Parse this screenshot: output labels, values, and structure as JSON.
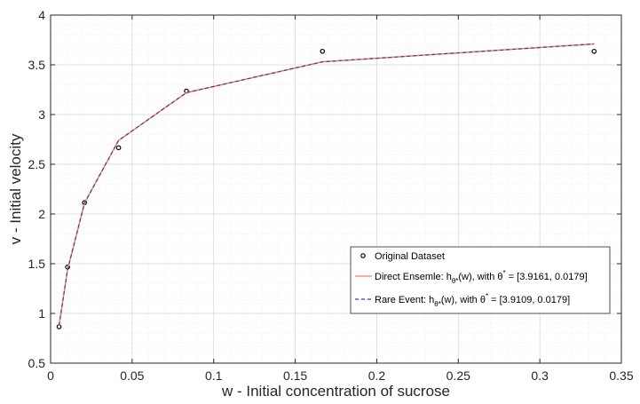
{
  "chart_data": {
    "type": "line",
    "xlabel": "w - Initial concentration of sucrose",
    "ylabel": "v - Initial velocity",
    "xlim": [
      0,
      0.35
    ],
    "ylim": [
      0.5,
      4
    ],
    "xticks": [
      0,
      0.05,
      0.1,
      0.15,
      0.2,
      0.25,
      0.3,
      0.35
    ],
    "xtick_labels": [
      "0",
      "0.05",
      "0.1",
      "0.15",
      "0.2",
      "0.25",
      "0.3",
      "0.35"
    ],
    "yticks": [
      0.5,
      1,
      1.5,
      2,
      2.5,
      3,
      3.5,
      4
    ],
    "ytick_labels": [
      "0.5",
      "1",
      "1.5",
      "2",
      "2.5",
      "3",
      "3.5",
      "4"
    ],
    "grid": true,
    "minor_grid": true,
    "legend_position": "bottom-right",
    "series": [
      {
        "name": "Original Dataset",
        "style": "markers",
        "color": "#000000",
        "x": [
          0.0052,
          0.0104,
          0.0208,
          0.0417,
          0.0833,
          0.1667,
          0.3333
        ],
        "y": [
          0.866,
          1.466,
          2.114,
          2.666,
          3.236,
          3.636,
          3.636
        ]
      },
      {
        "name": "Direct Ensemle",
        "legend_prefix": "Direct Ensemle: h",
        "legend_suffix": "(w),  with ",
        "legend_theta": "[3.9161, 0.0179]",
        "style": "solid",
        "color": "#ff7f50",
        "x": [
          0.0052,
          0.0104,
          0.0208,
          0.0417,
          0.0833,
          0.1667,
          0.3333
        ],
        "y": [
          0.88,
          1.44,
          2.11,
          2.74,
          3.22,
          3.53,
          3.71
        ]
      },
      {
        "name": "Rare Event",
        "legend_prefix": "Rare Event: h",
        "legend_suffix": "(w),  with ",
        "legend_theta": "[3.9109, 0.0179]",
        "style": "dashed",
        "color": "#3b3bbf",
        "x": [
          0.0052,
          0.0104,
          0.0208,
          0.0417,
          0.0833,
          0.1667,
          0.3333
        ],
        "y": [
          0.88,
          1.44,
          2.11,
          2.74,
          3.22,
          3.53,
          3.71
        ]
      }
    ],
    "legend_subscript": "θ*",
    "legend_theta_symbol": "θ",
    "legend_theta_sup": "*",
    "legend_equals": " = "
  }
}
